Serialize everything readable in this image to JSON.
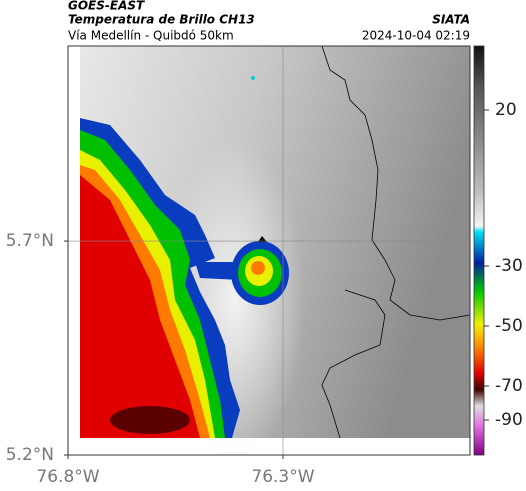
{
  "header": {
    "title": "GOES-EAST",
    "subtitle": "Temperatura de Brillo CH13",
    "route": "Vía Medellín - Quibdó 50km",
    "source": "SIATA",
    "timestamp": "2024-10-04 02:19"
  },
  "map": {
    "xlim": [
      -76.8,
      -75.865
    ],
    "ylim": [
      5.2,
      6.156
    ],
    "xticks": [
      {
        "value": -76.8,
        "label": "76.8°W"
      },
      {
        "value": -76.3,
        "label": "76.3°W"
      }
    ],
    "yticks": [
      {
        "value": 5.2,
        "label": "5.2°N"
      },
      {
        "value": 5.7,
        "label": "5.7°N"
      }
    ]
  },
  "colorbar": {
    "ticks": [
      20,
      -30,
      -50,
      -70,
      -90
    ]
  }
}
